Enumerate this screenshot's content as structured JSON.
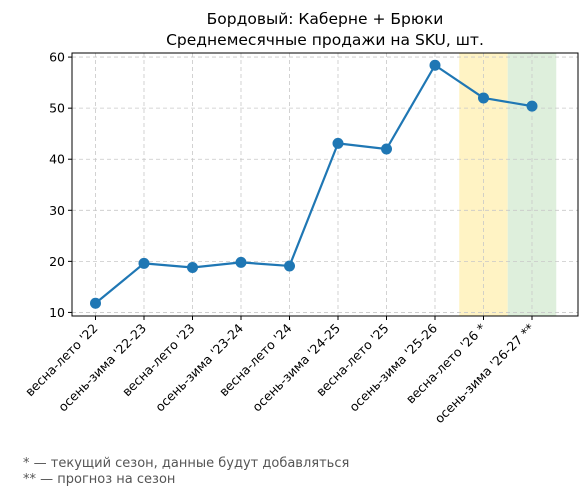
{
  "chart_data": {
    "type": "line",
    "title": "Бордовый: Каберне + Брюки",
    "subtitle": "Среднемесячные продажи на SKU, шт.",
    "xlabel": "",
    "ylabel": "",
    "categories": [
      "весна-лето '22",
      "осень-зима '22-23",
      "весна-лето '23",
      "осень-зима '23-24",
      "весна-лето '24",
      "осень-зима '24-25",
      "весна-лето '25",
      "осень-зима '25-26",
      "весна-лето '26 *",
      "осень-зима '26-27 **"
    ],
    "series": [
      {
        "values": [
          11.8,
          19.6,
          18.8,
          19.8,
          19.1,
          43.1,
          42.0,
          58.4,
          52.0,
          50.4
        ],
        "color": "#1f77b4"
      }
    ],
    "ylim": [
      9.3,
      60.8
    ],
    "yticks": [
      10,
      20,
      30,
      40,
      50,
      60
    ],
    "grid": true,
    "highlights": [
      {
        "category": "весна-лето '26 *",
        "color": "#fff3c4"
      },
      {
        "category": "осень-зима '26-27 **",
        "color": "#deefdc"
      }
    ]
  },
  "footnotes": {
    "current": "* — текущий сезон, данные будут добавляться",
    "forecast": "** — прогноз на сезон"
  }
}
